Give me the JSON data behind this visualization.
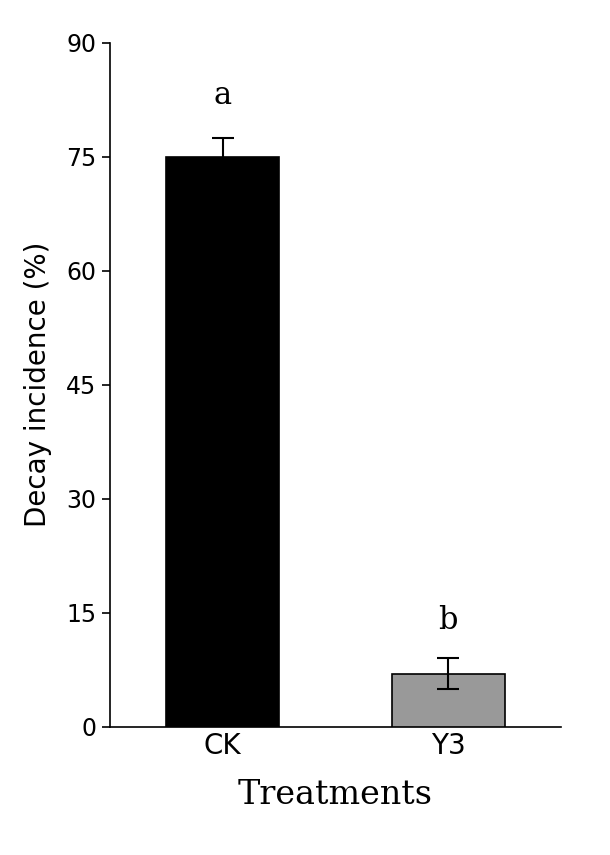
{
  "categories": [
    "CK",
    "Y3"
  ],
  "values": [
    75.0,
    7.0
  ],
  "errors": [
    2.5,
    2.0
  ],
  "bar_colors": [
    "#000000",
    "#999999"
  ],
  "bar_edge_colors": [
    "#000000",
    "#000000"
  ],
  "letters": [
    "a",
    "b"
  ],
  "ylabel": "Decay incidence (%)",
  "xlabel": "Treatments",
  "ylim": [
    0,
    90
  ],
  "yticks": [
    0,
    15,
    30,
    45,
    60,
    75,
    90
  ],
  "bar_width": 0.5,
  "label_fontsize": 20,
  "tick_fontsize": 17,
  "letter_fontsize": 22,
  "xlabel_fontsize": 24,
  "background_color": "#ffffff",
  "figsize": [
    6.1,
    8.55
  ],
  "dpi": 100
}
